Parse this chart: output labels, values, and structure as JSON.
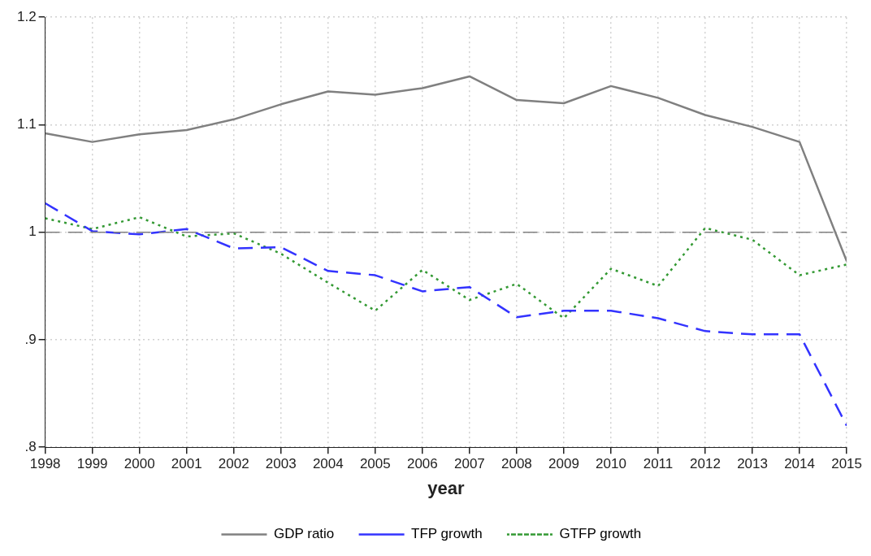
{
  "chart_data": {
    "type": "line",
    "xlabel": "year",
    "x": [
      1998,
      1999,
      2000,
      2001,
      2002,
      2003,
      2004,
      2005,
      2006,
      2007,
      2008,
      2009,
      2010,
      2011,
      2012,
      2013,
      2014,
      2015
    ],
    "series": [
      {
        "name": "GDP ratio",
        "color": "#808080",
        "line_style": "solid",
        "values": [
          1.092,
          1.084,
          1.091,
          1.095,
          1.105,
          1.119,
          1.131,
          1.128,
          1.134,
          1.145,
          1.123,
          1.12,
          1.136,
          1.125,
          1.109,
          1.098,
          1.084,
          0.973
        ]
      },
      {
        "name": "TFP growth",
        "color": "#3333ff",
        "line_style": "dashed",
        "values": [
          1.027,
          1.001,
          0.998,
          1.003,
          0.985,
          0.986,
          0.964,
          0.96,
          0.945,
          0.949,
          0.921,
          0.927,
          0.927,
          0.92,
          0.908,
          0.905,
          0.905,
          0.82
        ]
      },
      {
        "name": "GTFP growth",
        "color": "#339933",
        "line_style": "dotted",
        "values": [
          1.013,
          1.003,
          1.014,
          0.996,
          0.999,
          0.98,
          0.953,
          0.927,
          0.965,
          0.937,
          0.952,
          0.92,
          0.966,
          0.95,
          1.004,
          0.993,
          0.96,
          0.97
        ]
      }
    ],
    "xlim": [
      1998,
      2015
    ],
    "xticks": [
      1998,
      1999,
      2000,
      2001,
      2002,
      2003,
      2004,
      2005,
      2006,
      2007,
      2008,
      2009,
      2010,
      2011,
      2012,
      2013,
      2014,
      2015
    ],
    "ylim": [
      0.8,
      1.2
    ],
    "yticks": [
      {
        "value": 0.8,
        "label": ".8"
      },
      {
        "value": 0.9,
        "label": ".9"
      },
      1,
      1.1,
      1.2
    ],
    "ref_lines": [
      {
        "axis": "y",
        "value": 1,
        "color": "#808080",
        "line_style": "dashed"
      }
    ],
    "grid": true,
    "legend": "bottom",
    "marker": "none"
  }
}
